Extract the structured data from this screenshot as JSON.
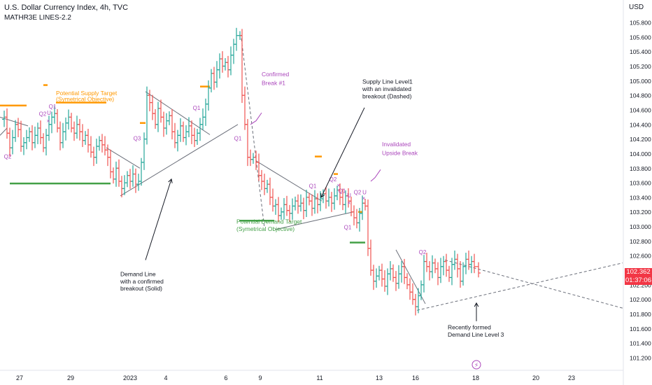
{
  "header": {
    "title": "U.S. Dollar Currency Index, 4h, TVC",
    "indicator": "MATHR3E LINES-2.2"
  },
  "price_axis": {
    "currency": "USD",
    "last_price": "102.362",
    "countdown": "01:37:06",
    "colors": {
      "up": "#26a69a",
      "down": "#ef5350",
      "last": "#f23645"
    }
  },
  "chart_data": {
    "type": "bar",
    "title": "U.S. Dollar Currency Index, 4h, TVC",
    "y_axis": {
      "range": [
        101.06,
        105.93
      ],
      "ticks": [
        "105.800",
        "105.600",
        "105.400",
        "105.200",
        "105.000",
        "104.800",
        "104.600",
        "104.400",
        "104.200",
        "104.000",
        "103.800",
        "103.600",
        "103.400",
        "103.200",
        "103.000",
        "102.800",
        "102.600",
        "102.400",
        "102.200",
        "102.000",
        "101.800",
        "101.600",
        "101.400",
        "101.200"
      ]
    },
    "x_axis": {
      "ticks": [
        "27",
        "29",
        "2023",
        "4",
        "6",
        "9",
        "11",
        "13",
        "16",
        "18",
        "20",
        "23"
      ]
    },
    "price_path": [
      [
        0,
        104.47
      ],
      [
        6,
        104.5
      ],
      [
        10,
        104.28
      ],
      [
        14,
        104.08
      ],
      [
        18,
        104.22
      ],
      [
        22,
        104.4
      ],
      [
        26,
        104.33
      ],
      [
        30,
        104.1
      ],
      [
        34,
        104.15
      ],
      [
        38,
        104.22
      ],
      [
        42,
        104.3
      ],
      [
        46,
        104.15
      ],
      [
        50,
        104.25
      ],
      [
        54,
        104.35
      ],
      [
        58,
        104.22
      ],
      [
        62,
        104.08
      ],
      [
        66,
        104.25
      ],
      [
        70,
        104.4
      ],
      [
        74,
        104.5
      ],
      [
        78,
        104.55
      ],
      [
        82,
        104.35
      ],
      [
        86,
        104.15
      ],
      [
        90,
        104.3
      ],
      [
        94,
        104.42
      ],
      [
        98,
        104.5
      ],
      [
        102,
        104.35
      ],
      [
        106,
        104.28
      ],
      [
        110,
        104.4
      ],
      [
        114,
        104.3
      ],
      [
        118,
        104.18
      ],
      [
        122,
        104.25
      ],
      [
        126,
        104.12
      ],
      [
        130,
        104.02
      ],
      [
        134,
        103.95
      ],
      [
        138,
        104.1
      ],
      [
        142,
        104.18
      ],
      [
        146,
        104.12
      ],
      [
        150,
        104.05
      ],
      [
        154,
        103.95
      ],
      [
        158,
        103.75
      ],
      [
        162,
        103.65
      ],
      [
        166,
        103.8
      ],
      [
        170,
        103.62
      ],
      [
        174,
        103.52
      ],
      [
        178,
        103.6
      ],
      [
        182,
        103.7
      ],
      [
        186,
        103.62
      ],
      [
        190,
        103.72
      ],
      [
        194,
        103.58
      ],
      [
        198,
        103.62
      ],
      [
        202,
        103.88
      ],
      [
        206,
        104.2
      ],
      [
        210,
        104.8
      ],
      [
        214,
        104.7
      ],
      [
        218,
        104.55
      ],
      [
        222,
        104.4
      ],
      [
        226,
        104.62
      ],
      [
        230,
        104.5
      ],
      [
        234,
        104.35
      ],
      [
        238,
        104.45
      ],
      [
        242,
        104.52
      ],
      [
        246,
        104.3
      ],
      [
        250,
        104.15
      ],
      [
        254,
        104.25
      ],
      [
        258,
        104.38
      ],
      [
        262,
        104.22
      ],
      [
        266,
        104.3
      ],
      [
        270,
        104.38
      ],
      [
        274,
        104.25
      ],
      [
        278,
        104.18
      ],
      [
        282,
        104.28
      ],
      [
        286,
        104.4
      ],
      [
        290,
        104.5
      ],
      [
        294,
        104.68
      ],
      [
        298,
        104.9
      ],
      [
        302,
        105.1
      ],
      [
        306,
        104.98
      ],
      [
        310,
        105.15
      ],
      [
        314,
        105.3
      ],
      [
        318,
        105.2
      ],
      [
        322,
        105.25
      ],
      [
        326,
        105.15
      ],
      [
        330,
        105.35
      ],
      [
        334,
        105.5
      ],
      [
        338,
        105.62
      ],
      [
        343,
        105.62
      ],
      [
        346,
        104.8
      ],
      [
        350,
        104.4
      ],
      [
        354,
        103.95
      ],
      [
        358,
        103.92
      ],
      [
        362,
        103.95
      ],
      [
        366,
        103.88
      ],
      [
        370,
        103.7
      ],
      [
        374,
        103.62
      ],
      [
        378,
        103.52
      ],
      [
        382,
        103.58
      ],
      [
        386,
        103.4
      ],
      [
        390,
        103.28
      ],
      [
        394,
        103.3
      ],
      [
        398,
        103.15
      ],
      [
        402,
        103.2
      ],
      [
        406,
        103.3
      ],
      [
        410,
        103.22
      ],
      [
        414,
        103.18
      ],
      [
        418,
        103.28
      ],
      [
        422,
        103.35
      ],
      [
        426,
        103.28
      ],
      [
        430,
        103.32
      ],
      [
        434,
        103.22
      ],
      [
        438,
        103.4
      ],
      [
        442,
        103.35
      ],
      [
        446,
        103.25
      ],
      [
        450,
        103.38
      ],
      [
        454,
        103.3
      ],
      [
        458,
        103.38
      ],
      [
        462,
        103.45
      ],
      [
        466,
        103.35
      ],
      [
        470,
        103.4
      ],
      [
        474,
        103.32
      ],
      [
        478,
        103.42
      ],
      [
        482,
        103.5
      ],
      [
        486,
        103.4
      ],
      [
        490,
        103.3
      ],
      [
        494,
        103.42
      ],
      [
        498,
        103.35
      ],
      [
        502,
        103.2
      ],
      [
        506,
        103.12
      ],
      [
        510,
        103.05
      ],
      [
        514,
        103.18
      ],
      [
        518,
        103.32
      ],
      [
        522,
        103.28
      ],
      [
        526,
        102.7
      ],
      [
        530,
        102.4
      ],
      [
        534,
        102.25
      ],
      [
        538,
        102.32
      ],
      [
        542,
        102.4
      ],
      [
        546,
        102.28
      ],
      [
        550,
        102.18
      ],
      [
        554,
        102.35
      ],
      [
        558,
        102.42
      ],
      [
        562,
        102.3
      ],
      [
        566,
        102.22
      ],
      [
        570,
        102.35
      ],
      [
        574,
        102.45
      ],
      [
        578,
        102.3
      ],
      [
        582,
        102.2
      ],
      [
        586,
        102.1
      ],
      [
        590,
        102.0
      ],
      [
        594,
        101.9
      ],
      [
        598,
        102.05
      ],
      [
        602,
        102.2
      ],
      [
        606,
        102.52
      ],
      [
        610,
        102.45
      ],
      [
        614,
        102.38
      ],
      [
        618,
        102.5
      ],
      [
        622,
        102.42
      ],
      [
        626,
        102.3
      ],
      [
        630,
        102.45
      ],
      [
        634,
        102.52
      ],
      [
        638,
        102.4
      ],
      [
        642,
        102.3
      ],
      [
        646,
        102.48
      ],
      [
        650,
        102.55
      ],
      [
        654,
        102.42
      ],
      [
        658,
        102.25
      ],
      [
        662,
        102.45
      ],
      [
        666,
        102.55
      ],
      [
        670,
        102.48
      ],
      [
        674,
        102.52
      ],
      [
        678,
        102.45
      ],
      [
        684,
        102.362
      ]
    ],
    "levels": [
      {
        "color": "#ff9800",
        "y": 104.66,
        "x_from": 0,
        "x_to": 38
      },
      {
        "color": "#ff9800",
        "y": 104.7,
        "x_from": 80,
        "x_to": 152
      },
      {
        "color": "#ff9800",
        "y": 104.94,
        "x_from": 62,
        "x_to": 68
      },
      {
        "color": "#ff9800",
        "y": 104.92,
        "x_from": 286,
        "x_to": 300
      },
      {
        "color": "#ff9800",
        "y": 104.42,
        "x_from": 200,
        "x_to": 208
      },
      {
        "color": "#ff9800",
        "y": 103.96,
        "x_from": 450,
        "x_to": 460
      },
      {
        "color": "#ff9800",
        "y": 103.72,
        "x_from": 477,
        "x_to": 483
      },
      {
        "color": "#ff9800",
        "y": 103.2,
        "x_from": 512,
        "x_to": 518
      },
      {
        "color": "#43a047",
        "y": 103.59,
        "x_from": 14,
        "x_to": 158
      },
      {
        "color": "#43a047",
        "y": 103.08,
        "x_from": 342,
        "x_to": 392
      },
      {
        "color": "#43a047",
        "y": 102.78,
        "x_from": 500,
        "x_to": 522
      }
    ],
    "trendlines": [
      {
        "style": "solid",
        "points": [
          [
            0,
            104.5
          ],
          [
            40,
            104.38
          ]
        ]
      },
      {
        "style": "solid",
        "points": [
          [
            0,
            104.25
          ],
          [
            10,
            104.35
          ]
        ]
      },
      {
        "style": "solid",
        "points": [
          [
            152,
            104.08
          ],
          [
            200,
            103.8
          ]
        ]
      },
      {
        "style": "solid",
        "points": [
          [
            172,
            103.42
          ],
          [
            340,
            104.4
          ]
        ]
      },
      {
        "style": "solid",
        "points": [
          [
            208,
            104.85
          ],
          [
            300,
            104.26
          ]
        ]
      },
      {
        "style": "solid",
        "points": [
          [
            366,
            103.9
          ],
          [
            460,
            103.35
          ]
        ]
      },
      {
        "style": "solid",
        "points": [
          [
            394,
            102.96
          ],
          [
            505,
            103.2
          ]
        ]
      },
      {
        "style": "solid",
        "points": [
          [
            566,
            102.68
          ],
          [
            608,
            101.94
          ]
        ]
      },
      {
        "style": "dashed",
        "points": [
          [
            345,
            105.58
          ],
          [
            378,
            102.98
          ]
        ]
      },
      {
        "style": "dashed",
        "points": [
          [
            596,
            101.85
          ],
          [
            890,
            102.5
          ]
        ]
      },
      {
        "style": "dashed",
        "points": [
          [
            636,
            102.54
          ],
          [
            890,
            101.88
          ]
        ]
      }
    ],
    "annotations": [
      {
        "text": "Potential Supply Target",
        "color": "#ff9800",
        "y": 104.8,
        "x": 80
      },
      {
        "text": "(Symetrical Objective)",
        "color": "#ff9800",
        "y": 104.72,
        "x": 80
      },
      {
        "text": "Confirmed",
        "color": "#ab47bc",
        "y": 105.06,
        "x": 374
      },
      {
        "text": "Break #1",
        "color": "#ab47bc",
        "y": 104.94,
        "x": 374
      },
      {
        "text": "Supply Line Level1",
        "color": "#131722",
        "y": 104.96,
        "x": 518
      },
      {
        "text": "with an invalidated",
        "color": "#131722",
        "y": 104.86,
        "x": 518
      },
      {
        "text": "breakout (Dashed)",
        "color": "#131722",
        "y": 104.76,
        "x": 518
      },
      {
        "text": "Invalidated",
        "color": "#ab47bc",
        "y": 104.1,
        "x": 546
      },
      {
        "text": "Upside Break",
        "color": "#ab47bc",
        "y": 103.98,
        "x": 546
      },
      {
        "text": "Potential Demand Target",
        "color": "#43a047",
        "y": 103.04,
        "x": 338
      },
      {
        "text": "(Symetrical Objective)",
        "color": "#43a047",
        "y": 102.94,
        "x": 338
      },
      {
        "text": "Demand Line",
        "color": "#131722",
        "y": 102.32,
        "x": 172
      },
      {
        "text": "with a confirmed",
        "color": "#131722",
        "y": 102.22,
        "x": 172
      },
      {
        "text": "breakout (Solid)",
        "color": "#131722",
        "y": 102.12,
        "x": 172
      },
      {
        "text": "Recently formed",
        "color": "#131722",
        "y": 101.59,
        "x": 640
      },
      {
        "text": "Demand Line Level 3",
        "color": "#131722",
        "y": 101.49,
        "x": 640
      }
    ],
    "markers": [
      {
        "text": "Q2",
        "y": 103.93,
        "x": 11
      },
      {
        "text": "Q1",
        "y": 104.62,
        "x": 75
      },
      {
        "text": "Q2",
        "y": 104.52,
        "x": 61
      },
      {
        "text": "U",
        "y": 104.53,
        "x": 70
      },
      {
        "text": "×",
        "y": 104.42,
        "x": 69
      },
      {
        "text": "Q3",
        "y": 104.18,
        "x": 196
      },
      {
        "text": "Q1",
        "y": 104.6,
        "x": 281
      },
      {
        "text": "Q1",
        "y": 104.18,
        "x": 340
      },
      {
        "text": "Q1",
        "y": 103.53,
        "x": 447
      },
      {
        "text": "Q2",
        "y": 103.62,
        "x": 476
      },
      {
        "text": "×",
        "y": 103.54,
        "x": 484
      },
      {
        "text": "Q1",
        "y": 103.46,
        "x": 489
      },
      {
        "text": "U",
        "y": 103.4,
        "x": 499
      },
      {
        "text": "×",
        "y": 103.3,
        "x": 499
      },
      {
        "text": "Q2",
        "y": 103.44,
        "x": 511
      },
      {
        "text": "U",
        "y": 103.44,
        "x": 521
      },
      {
        "text": "×",
        "y": 103.36,
        "x": 520
      },
      {
        "text": "Q1",
        "y": 102.96,
        "x": 497
      },
      {
        "text": "Q2",
        "y": 102.62,
        "x": 604
      }
    ],
    "arrows": [
      {
        "from": [
          208,
          102.54
        ],
        "to": [
          245,
          103.65
        ]
      },
      {
        "from": [
          521,
          104.63
        ],
        "to": [
          459,
          103.4
        ]
      },
      {
        "from": [
          681,
          101.7
        ],
        "to": [
          681,
          101.95
        ]
      }
    ],
    "callouts": [
      {
        "points": [
          [
            374,
            104.56
          ],
          [
            366,
            104.45
          ],
          [
            358,
            104.4
          ]
        ],
        "color": "#ab47bc"
      },
      {
        "points": [
          [
            544,
            103.78
          ],
          [
            536,
            103.67
          ],
          [
            530,
            103.62
          ]
        ],
        "color": "#ab47bc"
      }
    ],
    "event_icon": {
      "name": "lightning-icon",
      "x": 681,
      "color": "#ab47bc"
    }
  }
}
